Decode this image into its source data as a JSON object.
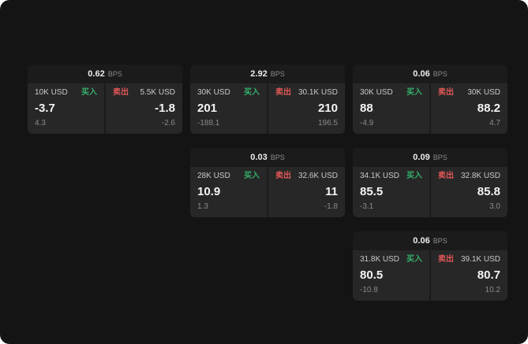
{
  "labels": {
    "bps": "BPS",
    "buy": "买入",
    "sell": "卖出"
  },
  "colors": {
    "page_bg": "#141414",
    "card_bg": "#1b1b1b",
    "panel_bg": "#272727",
    "buy_green": "#35b06b",
    "sell_red": "#e25757"
  },
  "cards": [
    {
      "bps_value": "0.62",
      "left": {
        "amount": "10K USD",
        "price": "-3.7",
        "delta": "4.3"
      },
      "right": {
        "amount": "5.5K USD",
        "price": "-1.8",
        "delta": "-2.6"
      }
    },
    {
      "bps_value": "2.92",
      "left": {
        "amount": "30K USD",
        "price": "201",
        "delta": "-188.1"
      },
      "right": {
        "amount": "30.1K USD",
        "price": "210",
        "delta": "196.5"
      }
    },
    {
      "bps_value": "0.06",
      "left": {
        "amount": "30K USD",
        "price": "88",
        "delta": "-4.9"
      },
      "right": {
        "amount": "30K USD",
        "price": "88.2",
        "delta": "4.7"
      }
    },
    {
      "bps_value": "0.03",
      "left": {
        "amount": "28K USD",
        "price": "10.9",
        "delta": "1.3"
      },
      "right": {
        "amount": "32.6K USD",
        "price": "11",
        "delta": "-1.8"
      }
    },
    {
      "bps_value": "0.09",
      "left": {
        "amount": "34.1K USD",
        "price": "85.5",
        "delta": "-3.1"
      },
      "right": {
        "amount": "32.8K USD",
        "price": "85.8",
        "delta": "3.0"
      }
    },
    {
      "bps_value": "0.06",
      "left": {
        "amount": "31.8K USD",
        "price": "80.5",
        "delta": "-10.8"
      },
      "right": {
        "amount": "39.1K USD",
        "price": "80.7",
        "delta": "10.2"
      }
    }
  ]
}
